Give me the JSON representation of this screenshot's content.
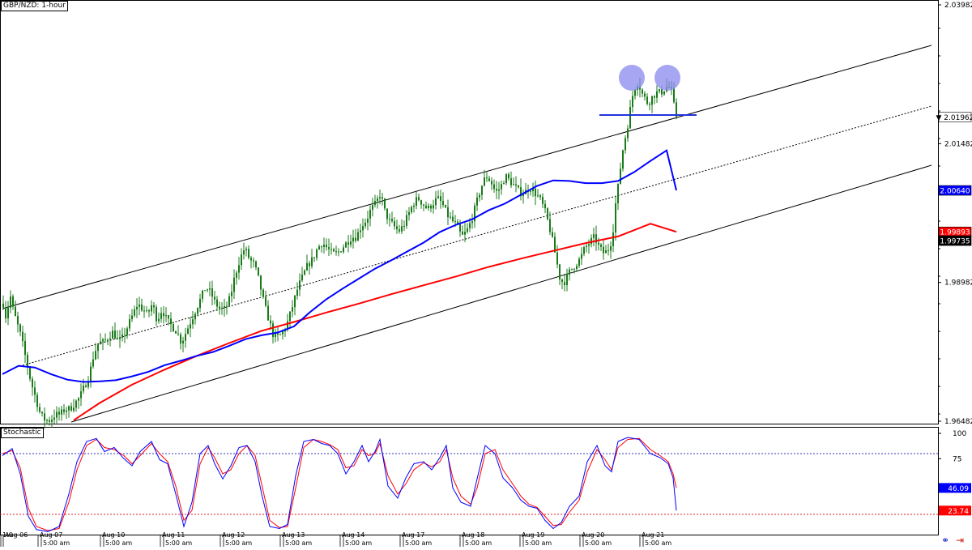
{
  "header": {
    "title": "GBP/NZD: 1-hour"
  },
  "indicator": {
    "title": "Stochastic"
  },
  "price_axis_ticks": [
    "2.03982",
    "2.01962",
    "2.01482",
    "2.00640",
    "1.99893",
    "1.99735",
    "1.98982",
    "1.96482"
  ],
  "price_badges": [
    {
      "text": "2.01962",
      "value": 2.01962,
      "bg": "#ffffff",
      "fg": "#000000",
      "marker": "▼"
    },
    {
      "text": "2.00640",
      "value": 2.0064,
      "bg": "#0000ff",
      "fg": "#ffffff"
    },
    {
      "text": "1.99893",
      "value": 1.99893,
      "bg": "#ff0000",
      "fg": "#ffffff"
    },
    {
      "text": "1.99735",
      "value": 1.99735,
      "bg": "#000000",
      "fg": "#ffffff"
    }
  ],
  "stoch_axis_ticks": [
    "100",
    "75"
  ],
  "stoch_badges": [
    {
      "text": "46.09",
      "value": 46.09,
      "bg": "#0000ff",
      "fg": "#ffffff"
    },
    {
      "text": "23.74",
      "value": 23.74,
      "bg": "#ff0000",
      "fg": "#ffffff"
    }
  ],
  "time_axis_labels": [
    "1:0",
    "Aug 06",
    "Aug 07",
    "5:00 am",
    "Aug 10",
    "5:00 am",
    "Aug 11",
    "5:00 am",
    "Aug 12",
    "5:00 am",
    "Aug 13",
    "5:00 am",
    "Aug 14",
    "5:00 am",
    "Aug 17",
    "5:00 am",
    "Aug 18",
    "5:00 am",
    "Aug 19",
    "5:00 am",
    "Aug 20",
    "5:00 am",
    "Aug 21",
    "5:00 am"
  ],
  "colors": {
    "candle": "#1a7a1a",
    "sma_fast": "#0000ff",
    "sma_slow": "#ff0000",
    "channel": "#000000",
    "neckline": "#2233dd",
    "tops": "#8888ee"
  },
  "chart_data": {
    "type": "candlestick",
    "title": "GBP/NZD: 1-hour",
    "ylim": [
      1.96482,
      2.03982
    ],
    "x_labels": [
      "Aug 06",
      "Aug 07",
      "Aug 10",
      "Aug 11",
      "Aug 12",
      "Aug 13",
      "Aug 14",
      "Aug 17",
      "Aug 18",
      "Aug 19",
      "Aug 20",
      "Aug 21"
    ],
    "close_path": [
      [
        0,
        1.986
      ],
      [
        4,
        1.983
      ],
      [
        8,
        1.988
      ],
      [
        12,
        1.985
      ],
      [
        18,
        1.982
      ],
      [
        22,
        1.98
      ],
      [
        28,
        1.976
      ],
      [
        34,
        1.972
      ],
      [
        40,
        1.969
      ],
      [
        46,
        1.966
      ],
      [
        52,
        1.965
      ],
      [
        58,
        1.965
      ],
      [
        64,
        1.966
      ],
      [
        70,
        1.966
      ],
      [
        76,
        1.967
      ],
      [
        82,
        1.967
      ],
      [
        88,
        1.968
      ],
      [
        94,
        1.969
      ],
      [
        100,
        1.971
      ],
      [
        106,
        1.973
      ],
      [
        112,
        1.977
      ],
      [
        118,
        1.979
      ],
      [
        124,
        1.979
      ],
      [
        130,
        1.98
      ],
      [
        136,
        1.981
      ],
      [
        142,
        1.979
      ],
      [
        148,
        1.98
      ],
      [
        154,
        1.982
      ],
      [
        160,
        1.984
      ],
      [
        166,
        1.986
      ],
      [
        172,
        1.985
      ],
      [
        178,
        1.984
      ],
      [
        184,
        1.986
      ],
      [
        190,
        1.983
      ],
      [
        196,
        1.985
      ],
      [
        202,
        1.983
      ],
      [
        208,
        1.982
      ],
      [
        214,
        1.981
      ],
      [
        220,
        1.979
      ],
      [
        226,
        1.981
      ],
      [
        232,
        1.983
      ],
      [
        238,
        1.985
      ],
      [
        244,
        1.987
      ],
      [
        250,
        1.989
      ],
      [
        256,
        1.988
      ],
      [
        262,
        1.986
      ],
      [
        268,
        1.985
      ],
      [
        274,
        1.985
      ],
      [
        280,
        1.987
      ],
      [
        286,
        1.991
      ],
      [
        292,
        1.994
      ],
      [
        298,
        1.996
      ],
      [
        304,
        1.994
      ],
      [
        310,
        1.993
      ],
      [
        316,
        1.99
      ],
      [
        322,
        1.986
      ],
      [
        328,
        1.983
      ],
      [
        334,
        1.98
      ],
      [
        340,
        1.98
      ],
      [
        346,
        1.981
      ],
      [
        352,
        1.983
      ],
      [
        358,
        1.986
      ],
      [
        364,
        1.989
      ],
      [
        370,
        1.991
      ],
      [
        376,
        1.993
      ],
      [
        382,
        1.994
      ],
      [
        388,
        1.996
      ],
      [
        394,
        1.997
      ],
      [
        400,
        1.996
      ],
      [
        406,
        1.995
      ],
      [
        412,
        1.995
      ],
      [
        418,
        1.996
      ],
      [
        424,
        1.997
      ],
      [
        430,
        1.998
      ],
      [
        436,
        1.998
      ],
      [
        442,
        2.0
      ],
      [
        448,
        2.001
      ],
      [
        454,
        2.003
      ],
      [
        460,
        2.004
      ],
      [
        466,
        2.006
      ],
      [
        470,
        2.003
      ],
      [
        476,
        2.001
      ],
      [
        482,
        2.0
      ],
      [
        488,
        1.999
      ],
      [
        494,
        2.0
      ],
      [
        500,
        2.002
      ],
      [
        506,
        2.004
      ],
      [
        512,
        2.005
      ],
      [
        518,
        2.004
      ],
      [
        524,
        2.003
      ],
      [
        530,
        2.004
      ],
      [
        536,
        2.005
      ],
      [
        542,
        2.004
      ],
      [
        548,
        2.002
      ],
      [
        554,
        2.001
      ],
      [
        560,
        2.0
      ],
      [
        566,
        1.998
      ],
      [
        572,
        1.999
      ],
      [
        578,
        2.001
      ],
      [
        584,
        2.004
      ],
      [
        590,
        2.007
      ],
      [
        596,
        2.009
      ],
      [
        602,
        2.008
      ],
      [
        608,
        2.006
      ],
      [
        614,
        2.007
      ],
      [
        620,
        2.009
      ],
      [
        626,
        2.008
      ],
      [
        632,
        2.007
      ],
      [
        638,
        2.006
      ],
      [
        644,
        2.006
      ],
      [
        650,
        2.007
      ],
      [
        656,
        2.006
      ],
      [
        662,
        2.005
      ],
      [
        668,
        2.003
      ],
      [
        674,
        2.0
      ],
      [
        680,
        1.996
      ],
      [
        684,
        1.993
      ],
      [
        688,
        1.99
      ],
      [
        694,
        1.99
      ],
      [
        700,
        1.992
      ],
      [
        706,
        1.993
      ],
      [
        712,
        1.994
      ],
      [
        718,
        1.996
      ],
      [
        724,
        1.997
      ],
      [
        730,
        1.998
      ],
      [
        736,
        1.996
      ],
      [
        742,
        1.995
      ],
      [
        748,
        1.996
      ],
      [
        752,
        1.998
      ],
      [
        756,
        2.004
      ],
      [
        760,
        2.008
      ],
      [
        764,
        2.013
      ],
      [
        768,
        2.016
      ],
      [
        772,
        2.019
      ],
      [
        776,
        2.023
      ],
      [
        780,
        2.025
      ],
      [
        784,
        2.026
      ],
      [
        788,
        2.024
      ],
      [
        792,
        2.023
      ],
      [
        796,
        2.022
      ],
      [
        800,
        2.023
      ],
      [
        806,
        2.024
      ],
      [
        812,
        2.024
      ],
      [
        818,
        2.025
      ],
      [
        824,
        2.025
      ],
      [
        830,
        2.02
      ],
      [
        832,
        2.01962
      ]
    ],
    "sma_fast": [
      [
        0,
        1.9733
      ],
      [
        20,
        1.9748
      ],
      [
        40,
        1.9745
      ],
      [
        60,
        1.9733
      ],
      [
        80,
        1.9723
      ],
      [
        100,
        1.9719
      ],
      [
        120,
        1.972
      ],
      [
        140,
        1.9722
      ],
      [
        160,
        1.9729
      ],
      [
        180,
        1.9737
      ],
      [
        200,
        1.9749
      ],
      [
        220,
        1.9757
      ],
      [
        240,
        1.9766
      ],
      [
        260,
        1.9773
      ],
      [
        280,
        1.9784
      ],
      [
        300,
        1.9796
      ],
      [
        320,
        1.9803
      ],
      [
        340,
        1.9808
      ],
      [
        360,
        1.9819
      ],
      [
        380,
        1.9845
      ],
      [
        400,
        1.9868
      ],
      [
        420,
        1.9887
      ],
      [
        440,
        1.9905
      ],
      [
        460,
        1.9923
      ],
      [
        480,
        1.9938
      ],
      [
        500,
        1.9954
      ],
      [
        520,
        1.997
      ],
      [
        540,
        1.9989
      ],
      [
        560,
        2.0002
      ],
      [
        580,
        2.0012
      ],
      [
        600,
        2.0028
      ],
      [
        620,
        2.004
      ],
      [
        640,
        2.0056
      ],
      [
        660,
        2.0072
      ],
      [
        680,
        2.0082
      ],
      [
        700,
        2.0081
      ],
      [
        720,
        2.0077
      ],
      [
        740,
        2.0077
      ],
      [
        760,
        2.0081
      ],
      [
        780,
        2.0097
      ],
      [
        800,
        2.0117
      ],
      [
        820,
        2.0136
      ],
      [
        832,
        2.0064
      ]
    ],
    "sma_slow": [
      [
        88,
        1.965
      ],
      [
        120,
        1.9681
      ],
      [
        160,
        1.9714
      ],
      [
        200,
        1.9741
      ],
      [
        240,
        1.9766
      ],
      [
        280,
        1.9789
      ],
      [
        320,
        1.9811
      ],
      [
        360,
        1.9827
      ],
      [
        400,
        1.9844
      ],
      [
        440,
        1.986
      ],
      [
        480,
        1.9877
      ],
      [
        520,
        1.9893
      ],
      [
        560,
        1.9909
      ],
      [
        600,
        1.9926
      ],
      [
        640,
        1.9941
      ],
      [
        680,
        1.9955
      ],
      [
        720,
        1.9969
      ],
      [
        760,
        1.9981
      ],
      [
        800,
        2.0004
      ],
      [
        832,
        1.99893
      ]
    ],
    "stochastic": {
      "ylim": [
        0,
        100
      ],
      "levels": [
        80,
        20
      ],
      "k_line": [
        [
          0,
          78
        ],
        [
          12,
          85
        ],
        [
          22,
          60
        ],
        [
          32,
          18
        ],
        [
          42,
          5
        ],
        [
          56,
          3
        ],
        [
          70,
          8
        ],
        [
          82,
          40
        ],
        [
          92,
          72
        ],
        [
          104,
          92
        ],
        [
          116,
          95
        ],
        [
          126,
          82
        ],
        [
          138,
          86
        ],
        [
          150,
          75
        ],
        [
          160,
          68
        ],
        [
          170,
          82
        ],
        [
          184,
          92
        ],
        [
          194,
          74
        ],
        [
          204,
          70
        ],
        [
          214,
          40
        ],
        [
          224,
          8
        ],
        [
          234,
          32
        ],
        [
          244,
          80
        ],
        [
          254,
          88
        ],
        [
          262,
          70
        ],
        [
          272,
          55
        ],
        [
          282,
          68
        ],
        [
          292,
          86
        ],
        [
          302,
          88
        ],
        [
          312,
          72
        ],
        [
          320,
          40
        ],
        [
          330,
          8
        ],
        [
          342,
          6
        ],
        [
          352,
          10
        ],
        [
          362,
          58
        ],
        [
          372,
          92
        ],
        [
          384,
          94
        ],
        [
          394,
          90
        ],
        [
          404,
          88
        ],
        [
          414,
          80
        ],
        [
          424,
          60
        ],
        [
          434,
          72
        ],
        [
          444,
          88
        ],
        [
          452,
          72
        ],
        [
          460,
          82
        ],
        [
          466,
          94
        ],
        [
          476,
          48
        ],
        [
          488,
          36
        ],
        [
          498,
          56
        ],
        [
          508,
          70
        ],
        [
          520,
          72
        ],
        [
          530,
          64
        ],
        [
          540,
          76
        ],
        [
          548,
          88
        ],
        [
          556,
          46
        ],
        [
          566,
          32
        ],
        [
          578,
          28
        ],
        [
          586,
          55
        ],
        [
          596,
          88
        ],
        [
          608,
          80
        ],
        [
          618,
          56
        ],
        [
          630,
          46
        ],
        [
          640,
          34
        ],
        [
          650,
          28
        ],
        [
          660,
          26
        ],
        [
          670,
          14
        ],
        [
          680,
          6
        ],
        [
          690,
          12
        ],
        [
          700,
          28
        ],
        [
          712,
          38
        ],
        [
          722,
          72
        ],
        [
          734,
          88
        ],
        [
          744,
          68
        ],
        [
          752,
          62
        ],
        [
          760,
          92
        ],
        [
          772,
          96
        ],
        [
          786,
          94
        ],
        [
          800,
          80
        ],
        [
          812,
          76
        ],
        [
          822,
          70
        ],
        [
          828,
          56
        ],
        [
          832,
          23.74
        ]
      ],
      "d_line": [
        [
          0,
          80
        ],
        [
          12,
          83
        ],
        [
          22,
          66
        ],
        [
          32,
          26
        ],
        [
          42,
          8
        ],
        [
          56,
          4
        ],
        [
          70,
          6
        ],
        [
          82,
          32
        ],
        [
          92,
          64
        ],
        [
          104,
          88
        ],
        [
          116,
          94
        ],
        [
          126,
          86
        ],
        [
          138,
          84
        ],
        [
          150,
          78
        ],
        [
          160,
          70
        ],
        [
          170,
          78
        ],
        [
          184,
          90
        ],
        [
          194,
          80
        ],
        [
          204,
          72
        ],
        [
          214,
          48
        ],
        [
          224,
          14
        ],
        [
          234,
          24
        ],
        [
          244,
          70
        ],
        [
          254,
          86
        ],
        [
          262,
          76
        ],
        [
          272,
          60
        ],
        [
          282,
          64
        ],
        [
          292,
          80
        ],
        [
          302,
          88
        ],
        [
          312,
          78
        ],
        [
          320,
          50
        ],
        [
          330,
          14
        ],
        [
          342,
          7
        ],
        [
          352,
          8
        ],
        [
          362,
          46
        ],
        [
          372,
          86
        ],
        [
          384,
          94
        ],
        [
          394,
          92
        ],
        [
          404,
          89
        ],
        [
          414,
          84
        ],
        [
          424,
          66
        ],
        [
          434,
          68
        ],
        [
          444,
          84
        ],
        [
          452,
          78
        ],
        [
          460,
          80
        ],
        [
          466,
          90
        ],
        [
          476,
          58
        ],
        [
          488,
          40
        ],
        [
          498,
          50
        ],
        [
          508,
          64
        ],
        [
          520,
          71
        ],
        [
          530,
          67
        ],
        [
          540,
          72
        ],
        [
          548,
          84
        ],
        [
          556,
          56
        ],
        [
          566,
          38
        ],
        [
          578,
          30
        ],
        [
          586,
          46
        ],
        [
          596,
          80
        ],
        [
          608,
          84
        ],
        [
          618,
          64
        ],
        [
          630,
          50
        ],
        [
          640,
          38
        ],
        [
          650,
          30
        ],
        [
          660,
          27
        ],
        [
          670,
          18
        ],
        [
          680,
          9
        ],
        [
          690,
          10
        ],
        [
          700,
          22
        ],
        [
          712,
          34
        ],
        [
          722,
          62
        ],
        [
          734,
          84
        ],
        [
          744,
          74
        ],
        [
          752,
          64
        ],
        [
          760,
          86
        ],
        [
          772,
          94
        ],
        [
          786,
          95
        ],
        [
          800,
          84
        ],
        [
          812,
          78
        ],
        [
          822,
          72
        ],
        [
          828,
          60
        ],
        [
          832,
          46.09
        ]
      ]
    }
  }
}
